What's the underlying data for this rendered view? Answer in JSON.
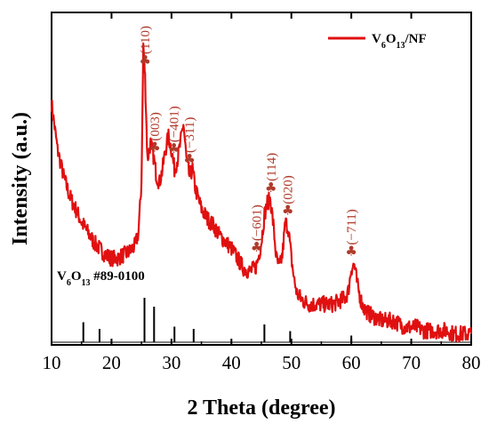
{
  "chart_data": {
    "type": "line",
    "xlabel": "2 Theta (degree)",
    "ylabel": "Intensity (a.u.)",
    "xlim": [
      10,
      80
    ],
    "x_ticks": [
      10,
      20,
      30,
      40,
      50,
      60,
      70,
      80
    ],
    "y_ticks_shown": false,
    "grid": false,
    "legend_position": "top-right",
    "colors": {
      "series": "#e01010",
      "annotation": "#b03a2a",
      "reference": "#000000"
    },
    "series": [
      {
        "name": "V6O13/NF",
        "x": [
          10,
          11,
          12,
          13,
          14,
          15,
          16,
          17,
          18,
          19,
          20,
          21,
          22,
          23,
          24,
          24.5,
          25.0,
          25.3,
          25.6,
          26.0,
          26.5,
          27.0,
          27.5,
          28.0,
          28.5,
          29.0,
          29.5,
          30.0,
          30.5,
          31.0,
          31.5,
          32.0,
          32.5,
          33.0,
          33.5,
          34.0,
          35,
          36,
          37,
          38,
          39,
          40,
          41,
          42,
          43,
          44,
          44.5,
          45.0,
          45.5,
          46.0,
          46.5,
          47.0,
          47.5,
          48.0,
          48.5,
          49.0,
          49.5,
          50.0,
          50.5,
          51,
          52,
          53,
          54,
          55,
          56,
          57,
          58,
          59,
          59.5,
          60.0,
          60.5,
          61.0,
          61.5,
          62,
          63,
          64,
          65,
          66,
          67,
          68,
          69,
          70,
          71,
          72,
          73,
          74,
          75,
          76,
          77,
          78,
          79,
          80
        ],
        "y": [
          72,
          58,
          50,
          44,
          40,
          36,
          33,
          30,
          28,
          26,
          25,
          25,
          26,
          27,
          29,
          33,
          48,
          90,
          80,
          55,
          60,
          56,
          50,
          48,
          52,
          58,
          62,
          58,
          52,
          55,
          60,
          66,
          55,
          50,
          52,
          46,
          40,
          37,
          35,
          32,
          30,
          28,
          25,
          22,
          21,
          22,
          25,
          30,
          38,
          42,
          43,
          35,
          25,
          22,
          26,
          36,
          34,
          25,
          18,
          14,
          12,
          11,
          11,
          11,
          11,
          11,
          12,
          13,
          15,
          22,
          23,
          17,
          13,
          10,
          8,
          7,
          6,
          6,
          6,
          5,
          4,
          4,
          4,
          3,
          3,
          3,
          3,
          3,
          2,
          2,
          2,
          2
        ]
      }
    ],
    "peaks": [
      {
        "two_theta": 25.6,
        "label": "(110)"
      },
      {
        "two_theta": 27.2,
        "label": "(003)"
      },
      {
        "two_theta": 30.4,
        "label": "(−401)"
      },
      {
        "two_theta": 33.0,
        "label": "(−311)"
      },
      {
        "two_theta": 44.2,
        "label": "(−601)"
      },
      {
        "two_theta": 46.6,
        "label": "(114)"
      },
      {
        "two_theta": 49.4,
        "label": "(020)"
      },
      {
        "two_theta": 60.0,
        "label": "(−711)"
      }
    ],
    "peak_marker": "♣",
    "reference_pattern": {
      "label": "V6O13 #89-0100",
      "lines": [
        {
          "x": 15.3,
          "h": 0.45
        },
        {
          "x": 18.0,
          "h": 0.3
        },
        {
          "x": 25.5,
          "h": 1.0
        },
        {
          "x": 27.1,
          "h": 0.8
        },
        {
          "x": 30.5,
          "h": 0.35
        },
        {
          "x": 33.7,
          "h": 0.3
        },
        {
          "x": 45.5,
          "h": 0.4
        },
        {
          "x": 49.8,
          "h": 0.25
        },
        {
          "x": 60.0,
          "h": 0.15
        }
      ]
    }
  }
}
